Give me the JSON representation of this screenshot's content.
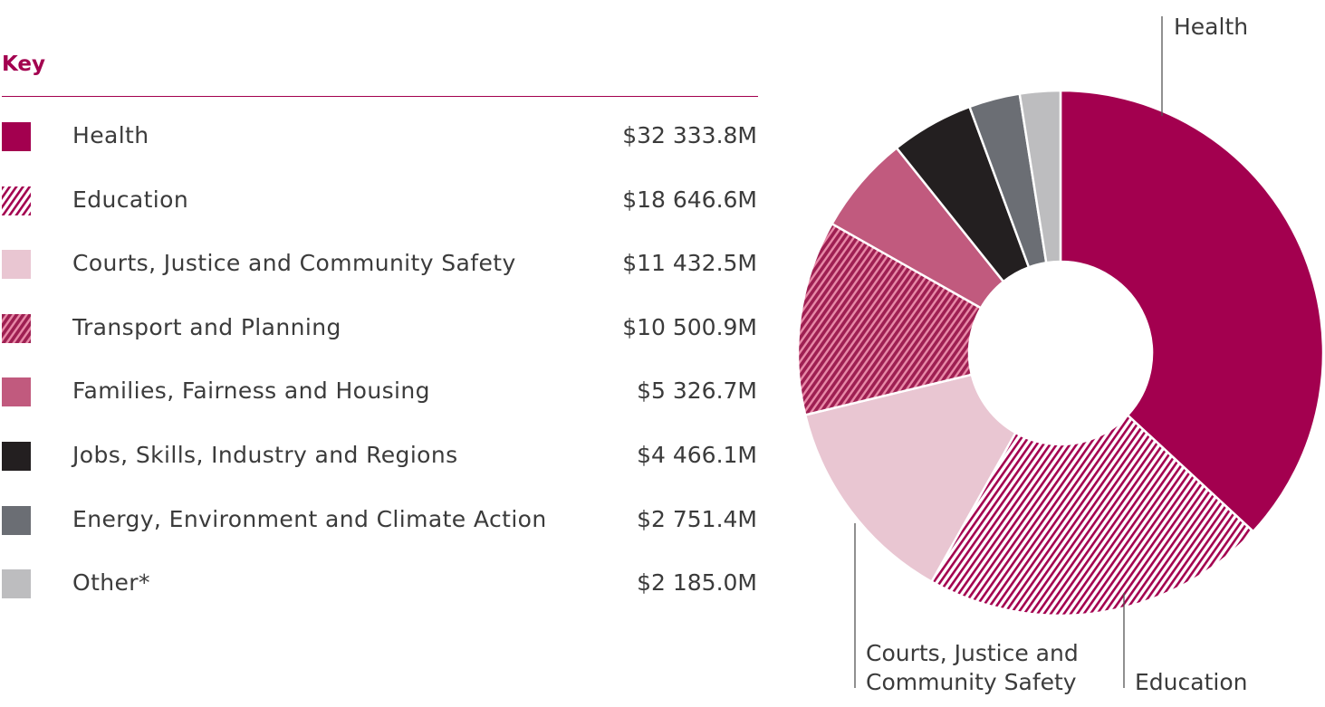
{
  "chart_data": {
    "type": "pie",
    "variant": "donut",
    "legend_title": "Key",
    "legend_position": "left",
    "slices": [
      {
        "label": "Health",
        "display_value": "$32 333.8M",
        "value": 32333.8,
        "color": "#a3004f",
        "pattern": "solid"
      },
      {
        "label": "Education",
        "display_value": "$18 646.6M",
        "value": 18646.6,
        "color": "#a3004f",
        "pattern": "fine-hatch"
      },
      {
        "label": "Courts, Justice and Community Safety",
        "display_value": "$11 432.5M",
        "value": 11432.5,
        "color": "#e9c6d2",
        "pattern": "solid"
      },
      {
        "label": "Transport and Planning",
        "display_value": "$10 500.9M",
        "value": 10500.9,
        "color": "#b0275f",
        "pattern": "bold-hatch"
      },
      {
        "label": "Families, Fairness and Housing",
        "display_value": "$5 326.7M",
        "value": 5326.7,
        "color": "#c15a7e",
        "pattern": "solid"
      },
      {
        "label": "Jobs, Skills, Industry and Regions",
        "display_value": "$4 466.1M",
        "value": 4466.1,
        "color": "#231f20",
        "pattern": "solid"
      },
      {
        "label": "Energy, Environment and Climate Action",
        "display_value": "$2 751.4M",
        "value": 2751.4,
        "color": "#6b6e74",
        "pattern": "solid"
      },
      {
        "label": "Other*",
        "display_value": "$2 185.0M",
        "value": 2185.0,
        "color": "#bdbdbf",
        "pattern": "solid"
      }
    ],
    "callouts": [
      {
        "slice": "Health",
        "lines": [
          "Health"
        ]
      },
      {
        "slice": "Courts, Justice and Community Safety",
        "lines": [
          "Courts, Justice and",
          "Community Safety"
        ]
      },
      {
        "slice": "Education",
        "lines": [
          "Education"
        ]
      }
    ],
    "accent_color": "#a3004f"
  }
}
